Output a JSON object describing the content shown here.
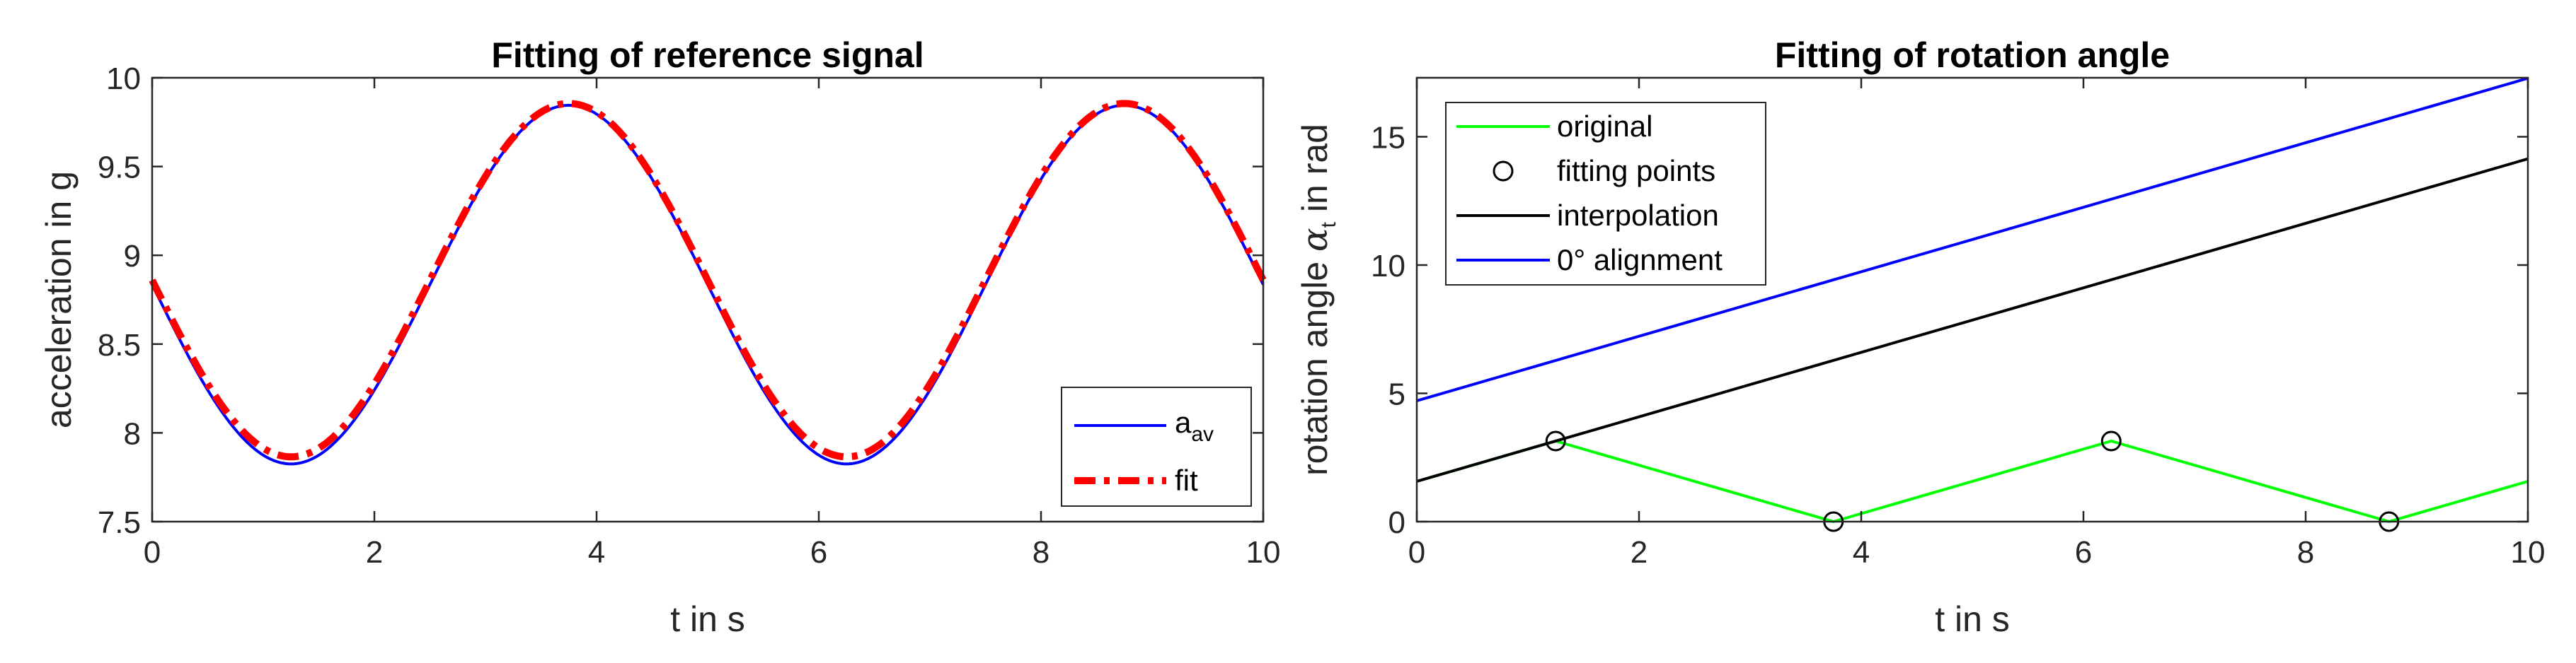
{
  "chart_data": [
    {
      "type": "line",
      "title": "Fitting of reference signal",
      "xlabel": "t in s",
      "ylabel": "acceleration in g",
      "xlim": [
        0,
        10
      ],
      "ylim": [
        7.5,
        10
      ],
      "xticks": [
        0,
        2,
        4,
        6,
        8,
        10
      ],
      "yticks": [
        7.5,
        8,
        8.5,
        9,
        9.5,
        10
      ],
      "legend": "bottom-right",
      "series": [
        {
          "name": "a_av",
          "legend_main": "a",
          "legend_sub": "av",
          "color": "#0000ff",
          "style": "solid",
          "model": "sine",
          "offset": 8.835,
          "amplitude": 1.01,
          "period": 5.0,
          "peak_t": 3.75
        },
        {
          "name": "fit",
          "legend_main": "fit",
          "legend_sub": "",
          "color": "#ff0000",
          "style": "dashdot",
          "model": "sine",
          "offset": 8.86,
          "amplitude": 0.995,
          "period": 5.0,
          "peak_t": 3.75
        }
      ]
    },
    {
      "type": "line",
      "title": "Fitting of rotation angle",
      "xlabel": "t in s",
      "ylabel_main": "rotation angle ",
      "ylabel_symbol": "α",
      "ylabel_sub": "t",
      "ylabel_tail": " in rad",
      "xlim": [
        0,
        10
      ],
      "ylim": [
        0,
        17.3
      ],
      "xticks": [
        0,
        2,
        4,
        6,
        8,
        10
      ],
      "yticks": [
        0,
        5,
        10,
        15
      ],
      "legend": "top-left",
      "series": [
        {
          "name": "original",
          "color": "#00ff00",
          "style": "solid",
          "x": [
            0,
            1.25,
            3.75,
            6.25,
            8.75,
            10
          ],
          "y": [
            1.57,
            3.14,
            0,
            3.14,
            0,
            1.57
          ]
        },
        {
          "name": "fitting points",
          "color": "#000000",
          "style": "marker-circle",
          "x": [
            1.25,
            3.75,
            6.25,
            8.75
          ],
          "y": [
            3.14,
            0,
            3.14,
            0
          ]
        },
        {
          "name": "interpolation",
          "color": "#000000",
          "style": "solid",
          "x": [
            0,
            10
          ],
          "y": [
            1.57,
            14.14
          ]
        },
        {
          "name": "0° alignment",
          "color": "#0000ff",
          "style": "solid",
          "x": [
            0,
            10
          ],
          "y": [
            4.71,
            17.28
          ]
        }
      ]
    }
  ]
}
